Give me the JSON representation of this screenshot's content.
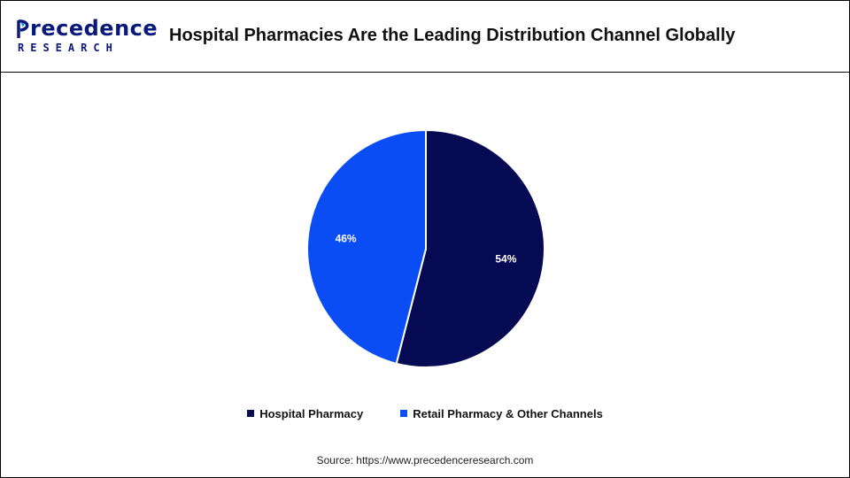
{
  "brand": {
    "logo_top": "recedence",
    "logo_bottom": "RESEARCH",
    "logo_text_color": "#0b1a7a"
  },
  "title": "Hospital Pharmacies Are the Leading Distribution Channel Globally",
  "source": "Source: https://www.precedenceresearch.com",
  "chart_data": {
    "type": "pie",
    "title": "Hospital Pharmacies Are the Leading Distribution Channel Globally",
    "categories": [
      "Hospital Pharmacy",
      "Retail Pharmacy & Other Channels"
    ],
    "values": [
      54,
      46
    ],
    "value_labels": [
      "54%",
      "46%"
    ],
    "colors": [
      "#050a52",
      "#0a4df5"
    ],
    "start": "12 o'clock, clockwise",
    "legend_position": "bottom"
  }
}
